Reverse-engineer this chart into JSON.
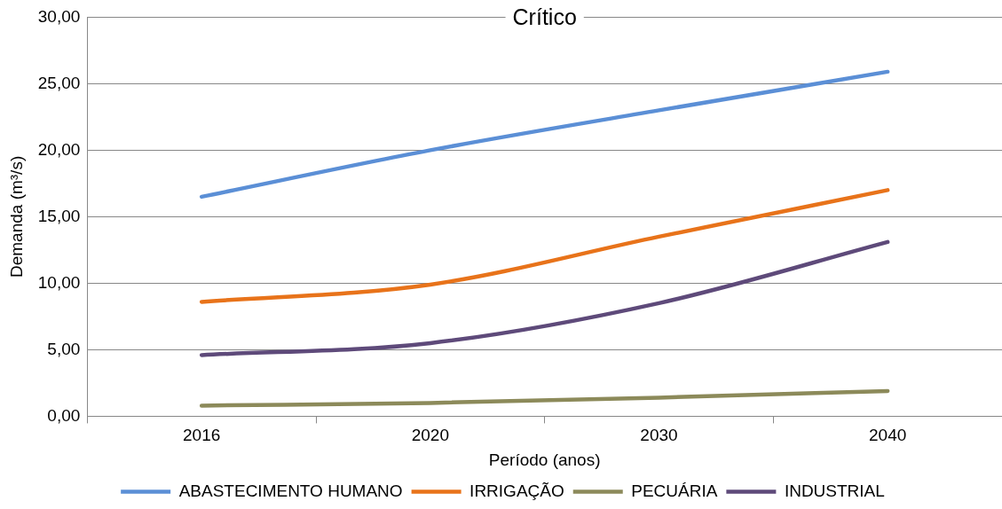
{
  "chart_data": {
    "type": "line",
    "title": "Crítico",
    "xlabel": "Período (anos)",
    "ylabel": "Demanda (m³/s)",
    "categories": [
      "2016",
      "2020",
      "2030",
      "2040"
    ],
    "series": [
      {
        "name": "ABASTECIMENTO HUMANO",
        "color": "#5b8fd6",
        "values": [
          16.5,
          20.0,
          23.0,
          25.9
        ]
      },
      {
        "name": "IRRIGAÇÃO",
        "color": "#e8731a",
        "values": [
          8.6,
          9.9,
          13.5,
          17.0
        ]
      },
      {
        "name": "PECUÁRIA",
        "color": "#8c8a5a",
        "values": [
          0.8,
          1.0,
          1.4,
          1.9
        ]
      },
      {
        "name": "INDUSTRIAL",
        "color": "#5e4a7a",
        "values": [
          4.6,
          5.5,
          8.5,
          13.1
        ]
      }
    ],
    "ylim": [
      0,
      30
    ],
    "yticks": [
      {
        "value": 0,
        "label": "0,00"
      },
      {
        "value": 5,
        "label": "5,00"
      },
      {
        "value": 10,
        "label": "10,00"
      },
      {
        "value": 15,
        "label": "15,00"
      },
      {
        "value": 20,
        "label": "20,00"
      },
      {
        "value": 25,
        "label": "25,00"
      },
      {
        "value": 30,
        "label": "30,00"
      }
    ],
    "grid": "y",
    "legend": "bottom",
    "marker": "none",
    "line_style": "solid"
  }
}
